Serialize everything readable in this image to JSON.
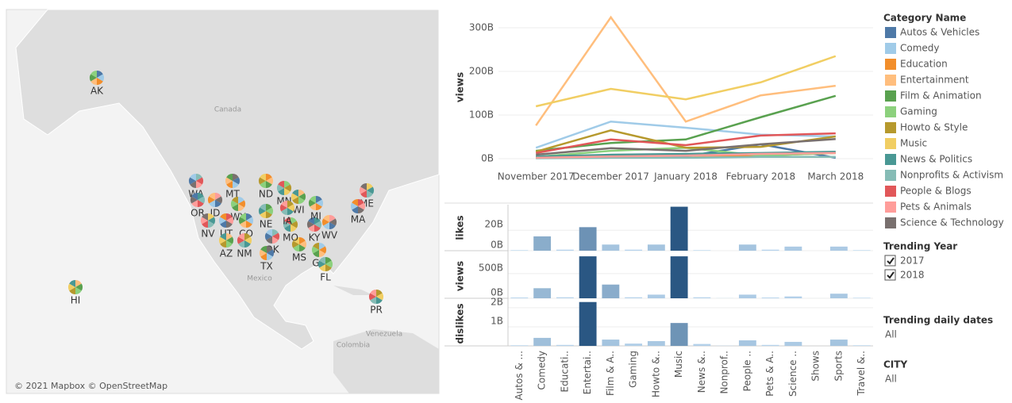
{
  "map": {
    "states": [
      "AK",
      "HI",
      "PR",
      "WA",
      "MT",
      "ND",
      "MN",
      "OR",
      "ID",
      "WY",
      "NE",
      "NV",
      "UT",
      "CO",
      "AZ",
      "NM",
      "OK",
      "TX",
      "MS",
      "MO",
      "KY",
      "WV",
      "GA",
      "FL",
      "ME",
      "MA",
      "MI",
      "WI",
      "IA"
    ],
    "places": [
      "Canada",
      "Mexico",
      "Venezuela",
      "Colombia"
    ],
    "attribution": "© 2021 Mapbox © OpenStreetMap"
  },
  "chart_data": [
    {
      "type": "line",
      "y_label": "views",
      "categories": [
        "November 2017",
        "December 2017",
        "January 2018",
        "February 2018",
        "March 2018"
      ],
      "ylim": [
        0,
        340
      ],
      "yticks": [
        {
          "value": 0,
          "label": "0B"
        },
        {
          "value": 100,
          "label": "100B"
        },
        {
          "value": 200,
          "label": "200B"
        },
        {
          "value": 300,
          "label": "300B"
        }
      ],
      "legend_title": "Category Name",
      "series": [
        {
          "name": "Autos & Vehicles",
          "color": "#4e79a7",
          "values": [
            4,
            7,
            5,
            33,
            2
          ]
        },
        {
          "name": "Comedy",
          "color": "#a0cbe8",
          "values": [
            25,
            85,
            71,
            55,
            51
          ]
        },
        {
          "name": "Education",
          "color": "#f28e2b",
          "values": [
            2,
            4,
            7,
            7,
            13
          ]
        },
        {
          "name": "Entertainment",
          "color": "#ffbe7d",
          "values": [
            76,
            324,
            85,
            145,
            167
          ]
        },
        {
          "name": "Film & Animation",
          "color": "#59a14f",
          "values": [
            18,
            36,
            44,
            95,
            144
          ]
        },
        {
          "name": "Gaming",
          "color": "#8cd17d",
          "values": [
            4,
            18,
            25,
            7,
            13
          ]
        },
        {
          "name": "Howto & Style",
          "color": "#b6992d",
          "values": [
            16,
            65,
            25,
            27,
            51
          ]
        },
        {
          "name": "Music",
          "color": "#f1ce63",
          "values": [
            120,
            160,
            136,
            175,
            235
          ]
        },
        {
          "name": "News & Politics",
          "color": "#499894",
          "values": [
            5,
            9,
            11,
            13,
            16
          ]
        },
        {
          "name": "Nonprofits & Activism",
          "color": "#86bcb6",
          "values": [
            1,
            2,
            2,
            4,
            4
          ]
        },
        {
          "name": "People & Blogs",
          "color": "#e15759",
          "values": [
            13,
            44,
            31,
            53,
            58
          ]
        },
        {
          "name": "Pets & Animals",
          "color": "#ff9d9a",
          "values": [
            2,
            5,
            7,
            11,
            13
          ]
        },
        {
          "name": "Science & Technology",
          "color": "#79706e",
          "values": [
            9,
            24,
            18,
            33,
            45
          ]
        }
      ]
    },
    {
      "type": "bar",
      "categories": [
        "Autos & ...",
        "Comedy",
        "Educati..",
        "Entertai..",
        "Film & A..",
        "Gaming",
        "Howto &..",
        "Music",
        "News &..",
        "Nonprof..",
        "People ..",
        "Pets & A..",
        "Science ..",
        "Shows",
        "Sports",
        "Travel &.."
      ],
      "panels": [
        {
          "y_label": "likes",
          "ylim": [
            0,
            45
          ],
          "yticks": [
            {
              "value": 0,
              "label": "0B"
            },
            {
              "value": 20,
              "label": "20B"
            }
          ],
          "values": [
            0.5,
            14,
            1,
            23,
            6,
            1,
            6,
            43,
            0.5,
            0,
            6,
            1,
            4,
            0,
            4,
            0.5
          ]
        },
        {
          "y_label": "views",
          "ylim": [
            0,
            900
          ],
          "yticks": [
            {
              "value": 0,
              "label": "0B"
            },
            {
              "value": 500,
              "label": "500B"
            }
          ],
          "values": [
            15,
            204,
            20,
            850,
            278,
            20,
            74,
            850,
            20,
            3,
            74,
            15,
            37,
            1,
            93,
            10
          ]
        },
        {
          "y_label": "dislikes",
          "ylim": [
            0,
            2.33
          ],
          "yticks": [
            {
              "value": 1,
              "label": "1B"
            },
            {
              "value": 2,
              "label": "2B"
            }
          ],
          "values": [
            0.03,
            0.42,
            0.05,
            2.3,
            0.33,
            0.12,
            0.25,
            1.2,
            0.1,
            0.01,
            0.29,
            0.05,
            0.21,
            0,
            0.33,
            0.03
          ]
        }
      ]
    }
  ],
  "filters": {
    "year": {
      "title": "Trending Year",
      "options": [
        "2017",
        "2018"
      ]
    },
    "dates": {
      "title": "Trending daily dates",
      "value": "All"
    },
    "city": {
      "title": "CITY",
      "value": "All"
    }
  }
}
